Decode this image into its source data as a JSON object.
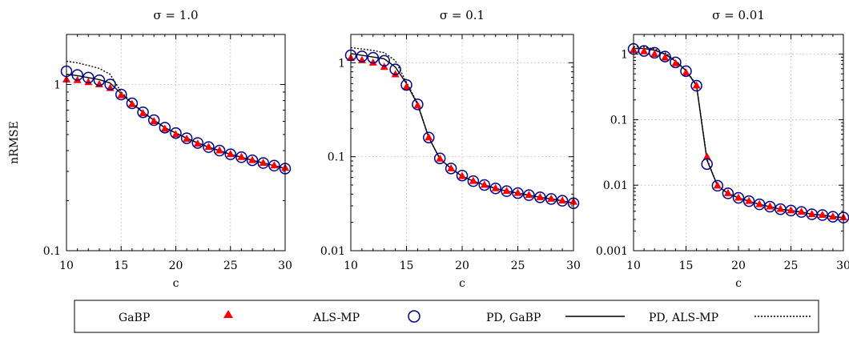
{
  "chart_data": [
    {
      "type": "line",
      "title": "σ = 1.0",
      "xlabel": "c",
      "ylabel": "nRMSE",
      "yscale": "log",
      "xlim": [
        10,
        30
      ],
      "ylim": [
        0.1,
        2.0
      ],
      "xticks": [
        "10",
        "15",
        "20",
        "25",
        "30"
      ],
      "yticks": [
        {
          "value": 0.1,
          "label": "0.1"
        },
        {
          "value": 1,
          "label": "1"
        }
      ],
      "grid": true,
      "x": [
        10,
        11,
        12,
        13,
        14,
        15,
        16,
        17,
        18,
        19,
        20,
        21,
        22,
        23,
        24,
        25,
        26,
        27,
        28,
        29,
        30
      ],
      "series": [
        {
          "name": "GaBP",
          "style": "markers",
          "marker": "triangle",
          "color": "#ff0000",
          "values": [
            1.07,
            1.06,
            1.03,
            1.0,
            0.95,
            0.86,
            0.76,
            0.67,
            0.6,
            0.54,
            0.5,
            0.47,
            0.44,
            0.42,
            0.4,
            0.38,
            0.365,
            0.35,
            0.337,
            0.325,
            0.315
          ]
        },
        {
          "name": "ALS-MP",
          "style": "markers",
          "marker": "circle",
          "color": "#00008b",
          "values": [
            1.2,
            1.14,
            1.1,
            1.06,
            1.0,
            0.87,
            0.77,
            0.68,
            0.61,
            0.55,
            0.51,
            0.475,
            0.445,
            0.42,
            0.4,
            0.38,
            0.365,
            0.35,
            0.337,
            0.325,
            0.312
          ]
        },
        {
          "name": "PD, GaBP",
          "style": "solid",
          "color": "#000000",
          "values": [
            1.15,
            1.13,
            1.1,
            1.07,
            1.02,
            0.88,
            0.77,
            0.68,
            0.61,
            0.55,
            0.51,
            0.475,
            0.445,
            0.42,
            0.4,
            0.38,
            0.365,
            0.35,
            0.337,
            0.325,
            0.312
          ]
        },
        {
          "name": "PD, ALS-MP",
          "style": "dotted",
          "color": "#000000",
          "values": [
            1.38,
            1.35,
            1.3,
            1.25,
            1.15,
            0.9,
            0.78,
            0.68,
            0.61,
            0.55,
            0.51,
            0.475,
            0.445,
            0.42,
            0.4,
            0.38,
            0.365,
            0.35,
            0.337,
            0.325,
            0.312
          ]
        }
      ]
    },
    {
      "type": "line",
      "title": "σ = 0.1",
      "xlabel": "c",
      "ylabel": "",
      "yscale": "log",
      "xlim": [
        10,
        30
      ],
      "ylim": [
        0.01,
        2.0
      ],
      "xticks": [
        "10",
        "15",
        "20",
        "25",
        "30"
      ],
      "yticks": [
        {
          "value": 0.01,
          "label": "0.01"
        },
        {
          "value": 0.1,
          "label": "0.1"
        },
        {
          "value": 1,
          "label": "1"
        }
      ],
      "grid": true,
      "x": [
        10,
        11,
        12,
        13,
        14,
        15,
        16,
        17,
        18,
        19,
        20,
        21,
        22,
        23,
        24,
        25,
        26,
        27,
        28,
        29,
        30
      ],
      "series": [
        {
          "name": "GaBP",
          "style": "markers",
          "marker": "triangle",
          "color": "#ff0000",
          "values": [
            1.12,
            1.06,
            1.0,
            0.9,
            0.75,
            0.55,
            0.35,
            0.16,
            0.095,
            0.075,
            0.062,
            0.055,
            0.05,
            0.046,
            0.043,
            0.041,
            0.039,
            0.037,
            0.0355,
            0.034,
            0.033
          ]
        },
        {
          "name": "ALS-MP",
          "style": "markers",
          "marker": "circle",
          "color": "#00008b",
          "values": [
            1.2,
            1.17,
            1.13,
            1.05,
            0.85,
            0.58,
            0.36,
            0.16,
            0.096,
            0.075,
            0.063,
            0.055,
            0.05,
            0.046,
            0.043,
            0.041,
            0.039,
            0.037,
            0.0355,
            0.034,
            0.032
          ]
        },
        {
          "name": "PD, GaBP",
          "style": "solid",
          "color": "#000000",
          "values": [
            1.25,
            1.2,
            1.15,
            1.1,
            0.9,
            0.6,
            0.36,
            0.16,
            0.095,
            0.075,
            0.062,
            0.055,
            0.05,
            0.046,
            0.043,
            0.041,
            0.039,
            0.037,
            0.0355,
            0.034,
            0.032
          ]
        },
        {
          "name": "PD, ALS-MP",
          "style": "dotted",
          "color": "#000000",
          "values": [
            1.45,
            1.4,
            1.35,
            1.28,
            1.05,
            0.62,
            0.37,
            0.16,
            0.095,
            0.075,
            0.062,
            0.055,
            0.05,
            0.046,
            0.043,
            0.041,
            0.039,
            0.037,
            0.0355,
            0.034,
            0.032
          ]
        }
      ]
    },
    {
      "type": "line",
      "title": "σ = 0.01",
      "xlabel": "c",
      "ylabel": "",
      "yscale": "log",
      "xlim": [
        10,
        30
      ],
      "ylim": [
        0.001,
        2.0
      ],
      "xticks": [
        "10",
        "15",
        "20",
        "25",
        "30"
      ],
      "yticks": [
        {
          "value": 0.001,
          "label": "0.001"
        },
        {
          "value": 0.01,
          "label": "0.01"
        },
        {
          "value": 0.1,
          "label": "0.1"
        },
        {
          "value": 1,
          "label": "1"
        }
      ],
      "grid": true,
      "x": [
        10,
        11,
        12,
        13,
        14,
        15,
        16,
        17,
        18,
        19,
        20,
        21,
        22,
        23,
        24,
        25,
        26,
        27,
        28,
        29,
        30
      ],
      "series": [
        {
          "name": "GaBP",
          "style": "markers",
          "marker": "triangle",
          "color": "#ff0000",
          "values": [
            1.15,
            1.1,
            1.0,
            0.88,
            0.72,
            0.52,
            0.33,
            0.027,
            0.0098,
            0.0075,
            0.0064,
            0.0057,
            0.0051,
            0.0047,
            0.0043,
            0.0041,
            0.0039,
            0.0036,
            0.0035,
            0.0033,
            0.0032
          ]
        },
        {
          "name": "ALS-MP",
          "style": "markers",
          "marker": "circle",
          "color": "#00008b",
          "values": [
            1.2,
            1.12,
            1.05,
            0.92,
            0.75,
            0.55,
            0.33,
            0.021,
            0.0098,
            0.0075,
            0.0064,
            0.0057,
            0.0051,
            0.0047,
            0.0043,
            0.0041,
            0.0039,
            0.0036,
            0.0035,
            0.0033,
            0.0032
          ]
        },
        {
          "name": "PD, GaBP",
          "style": "solid",
          "color": "#000000",
          "values": [
            1.22,
            1.22,
            1.15,
            1.0,
            0.78,
            0.56,
            0.33,
            0.024,
            0.0098,
            0.0075,
            0.0064,
            0.0057,
            0.0051,
            0.0047,
            0.0043,
            0.0041,
            0.0039,
            0.0036,
            0.0035,
            0.0033,
            0.0032
          ]
        },
        {
          "name": "PD, ALS-MP",
          "style": "dotted",
          "color": "#000000",
          "values": [
            1.3,
            1.28,
            1.2,
            1.05,
            0.8,
            0.57,
            0.34,
            0.025,
            0.0098,
            0.0075,
            0.0064,
            0.0057,
            0.0051,
            0.0047,
            0.0043,
            0.0041,
            0.0039,
            0.0036,
            0.0035,
            0.0033,
            0.0032
          ]
        }
      ]
    }
  ],
  "legend": {
    "position": "bottom",
    "entries": [
      {
        "label": "GaBP",
        "symbol": "triangle",
        "color": "#ff0000"
      },
      {
        "label": "ALS-MP",
        "symbol": "circle",
        "color": "#00008b"
      },
      {
        "label": "PD, GaBP",
        "symbol": "solid-line",
        "color": "#000000"
      },
      {
        "label": "PD, ALS-MP",
        "symbol": "dotted-line",
        "color": "#000000"
      }
    ]
  }
}
